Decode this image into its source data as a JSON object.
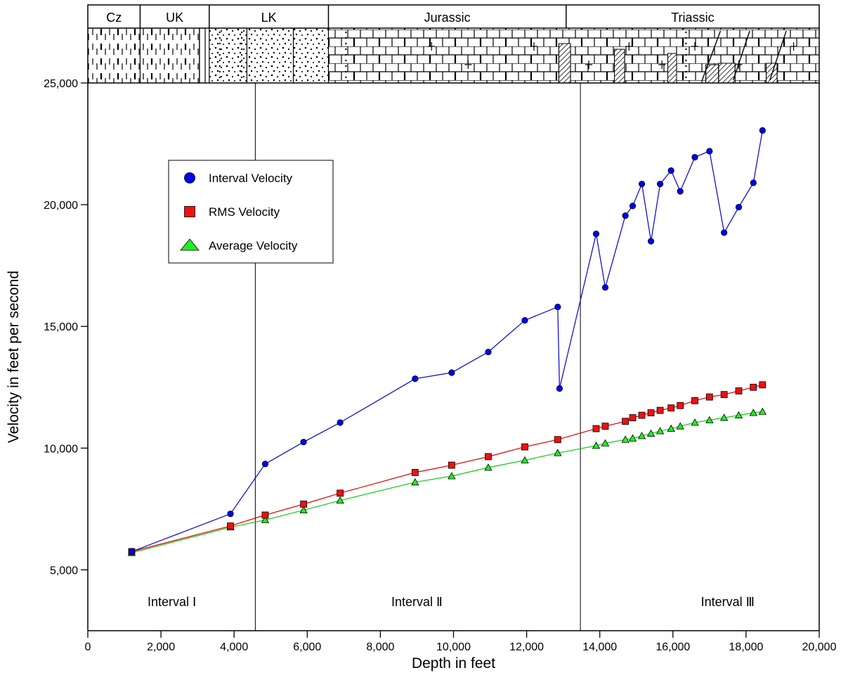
{
  "chart_data": {
    "type": "line",
    "title": "",
    "xlabel": "Depth in feet",
    "ylabel": "Velocity in feet per second",
    "xlim": [
      0,
      20000
    ],
    "ylim": [
      2500,
      25000
    ],
    "x_ticks": [
      0,
      2000,
      4000,
      6000,
      8000,
      10000,
      12000,
      14000,
      16000,
      18000,
      20000
    ],
    "x_tick_labels": [
      "0",
      "2,000",
      "4,000",
      "6,000",
      "8,000",
      "10,000",
      "12,000",
      "14,000",
      "16,000",
      "18,000",
      "20,000"
    ],
    "y_ticks": [
      5000,
      10000,
      15000,
      20000,
      25000
    ],
    "y_tick_labels": [
      "5,000",
      "10,000",
      "15,000",
      "20,000",
      "25,000"
    ],
    "grid": false,
    "legend_position": "upper-left",
    "series": [
      {
        "name": "Interval Velocity",
        "marker": "circle",
        "color": "#0000ee",
        "line_color": "#0000cc",
        "x": [
          1200,
          3900,
          4850,
          5900,
          6900,
          8950,
          9950,
          10950,
          11950,
          12850,
          12900,
          13900,
          14150,
          14700,
          14900,
          15150,
          15400,
          15650,
          15950,
          16200,
          16600,
          17000,
          17400,
          17800,
          18200,
          18450
        ],
        "y": [
          5750,
          7300,
          9350,
          10250,
          11050,
          12850,
          13100,
          13950,
          15250,
          15800,
          12450,
          18800,
          16600,
          19550,
          19950,
          20850,
          18500,
          20850,
          21400,
          20550,
          21950,
          22200,
          18850,
          19900,
          20900,
          23050
        ]
      },
      {
        "name": "RMS Velocity",
        "marker": "square",
        "color": "#ee1111",
        "line_color": "#dd0000",
        "x": [
          1200,
          3900,
          4850,
          5900,
          6900,
          8950,
          9950,
          10950,
          11950,
          12850,
          13900,
          14150,
          14700,
          14900,
          15150,
          15400,
          15650,
          15950,
          16200,
          16600,
          17000,
          17400,
          17800,
          18200,
          18450
        ],
        "y": [
          5750,
          6800,
          7250,
          7700,
          8150,
          9000,
          9300,
          9650,
          10050,
          10350,
          10800,
          10900,
          11100,
          11250,
          11350,
          11450,
          11550,
          11650,
          11750,
          11950,
          12100,
          12200,
          12350,
          12500,
          12600
        ]
      },
      {
        "name": "Average Velocity",
        "marker": "triangle",
        "color": "#22ee22",
        "line_color": "#11cc11",
        "x": [
          1200,
          3900,
          4850,
          5900,
          6900,
          8950,
          9950,
          10950,
          11950,
          12850,
          13900,
          14150,
          14700,
          14900,
          15150,
          15400,
          15650,
          15950,
          16200,
          16600,
          17000,
          17400,
          17800,
          18200,
          18450
        ],
        "y": [
          5700,
          6750,
          7050,
          7450,
          7850,
          8600,
          8850,
          9200,
          9500,
          9800,
          10100,
          10200,
          10350,
          10400,
          10500,
          10600,
          10700,
          10800,
          10900,
          11050,
          11150,
          11250,
          11350,
          11450,
          11500
        ]
      }
    ],
    "vertical_lines": [
      4580,
      13470
    ],
    "interval_labels": [
      {
        "text": "Interval Ⅰ",
        "x": 2300
      },
      {
        "text": "Interval Ⅱ",
        "x": 9000
      },
      {
        "text": "Interval Ⅲ",
        "x": 17500
      }
    ],
    "period_labels": [
      "Cz",
      "UK",
      "LK",
      "Jurassic",
      "Triassic"
    ],
    "period_boundaries": [
      0,
      1430,
      3320,
      6580,
      13080,
      20000
    ],
    "lithology_blocks": [
      {
        "from": 0,
        "to": 3050,
        "pattern": "shale"
      },
      {
        "from": 3050,
        "to": 3320,
        "pattern": "vertical-lines"
      },
      {
        "from": 3320,
        "to": 6580,
        "pattern": "sandstone"
      },
      {
        "from": 6580,
        "to": 20000,
        "pattern": "limestone"
      }
    ]
  }
}
